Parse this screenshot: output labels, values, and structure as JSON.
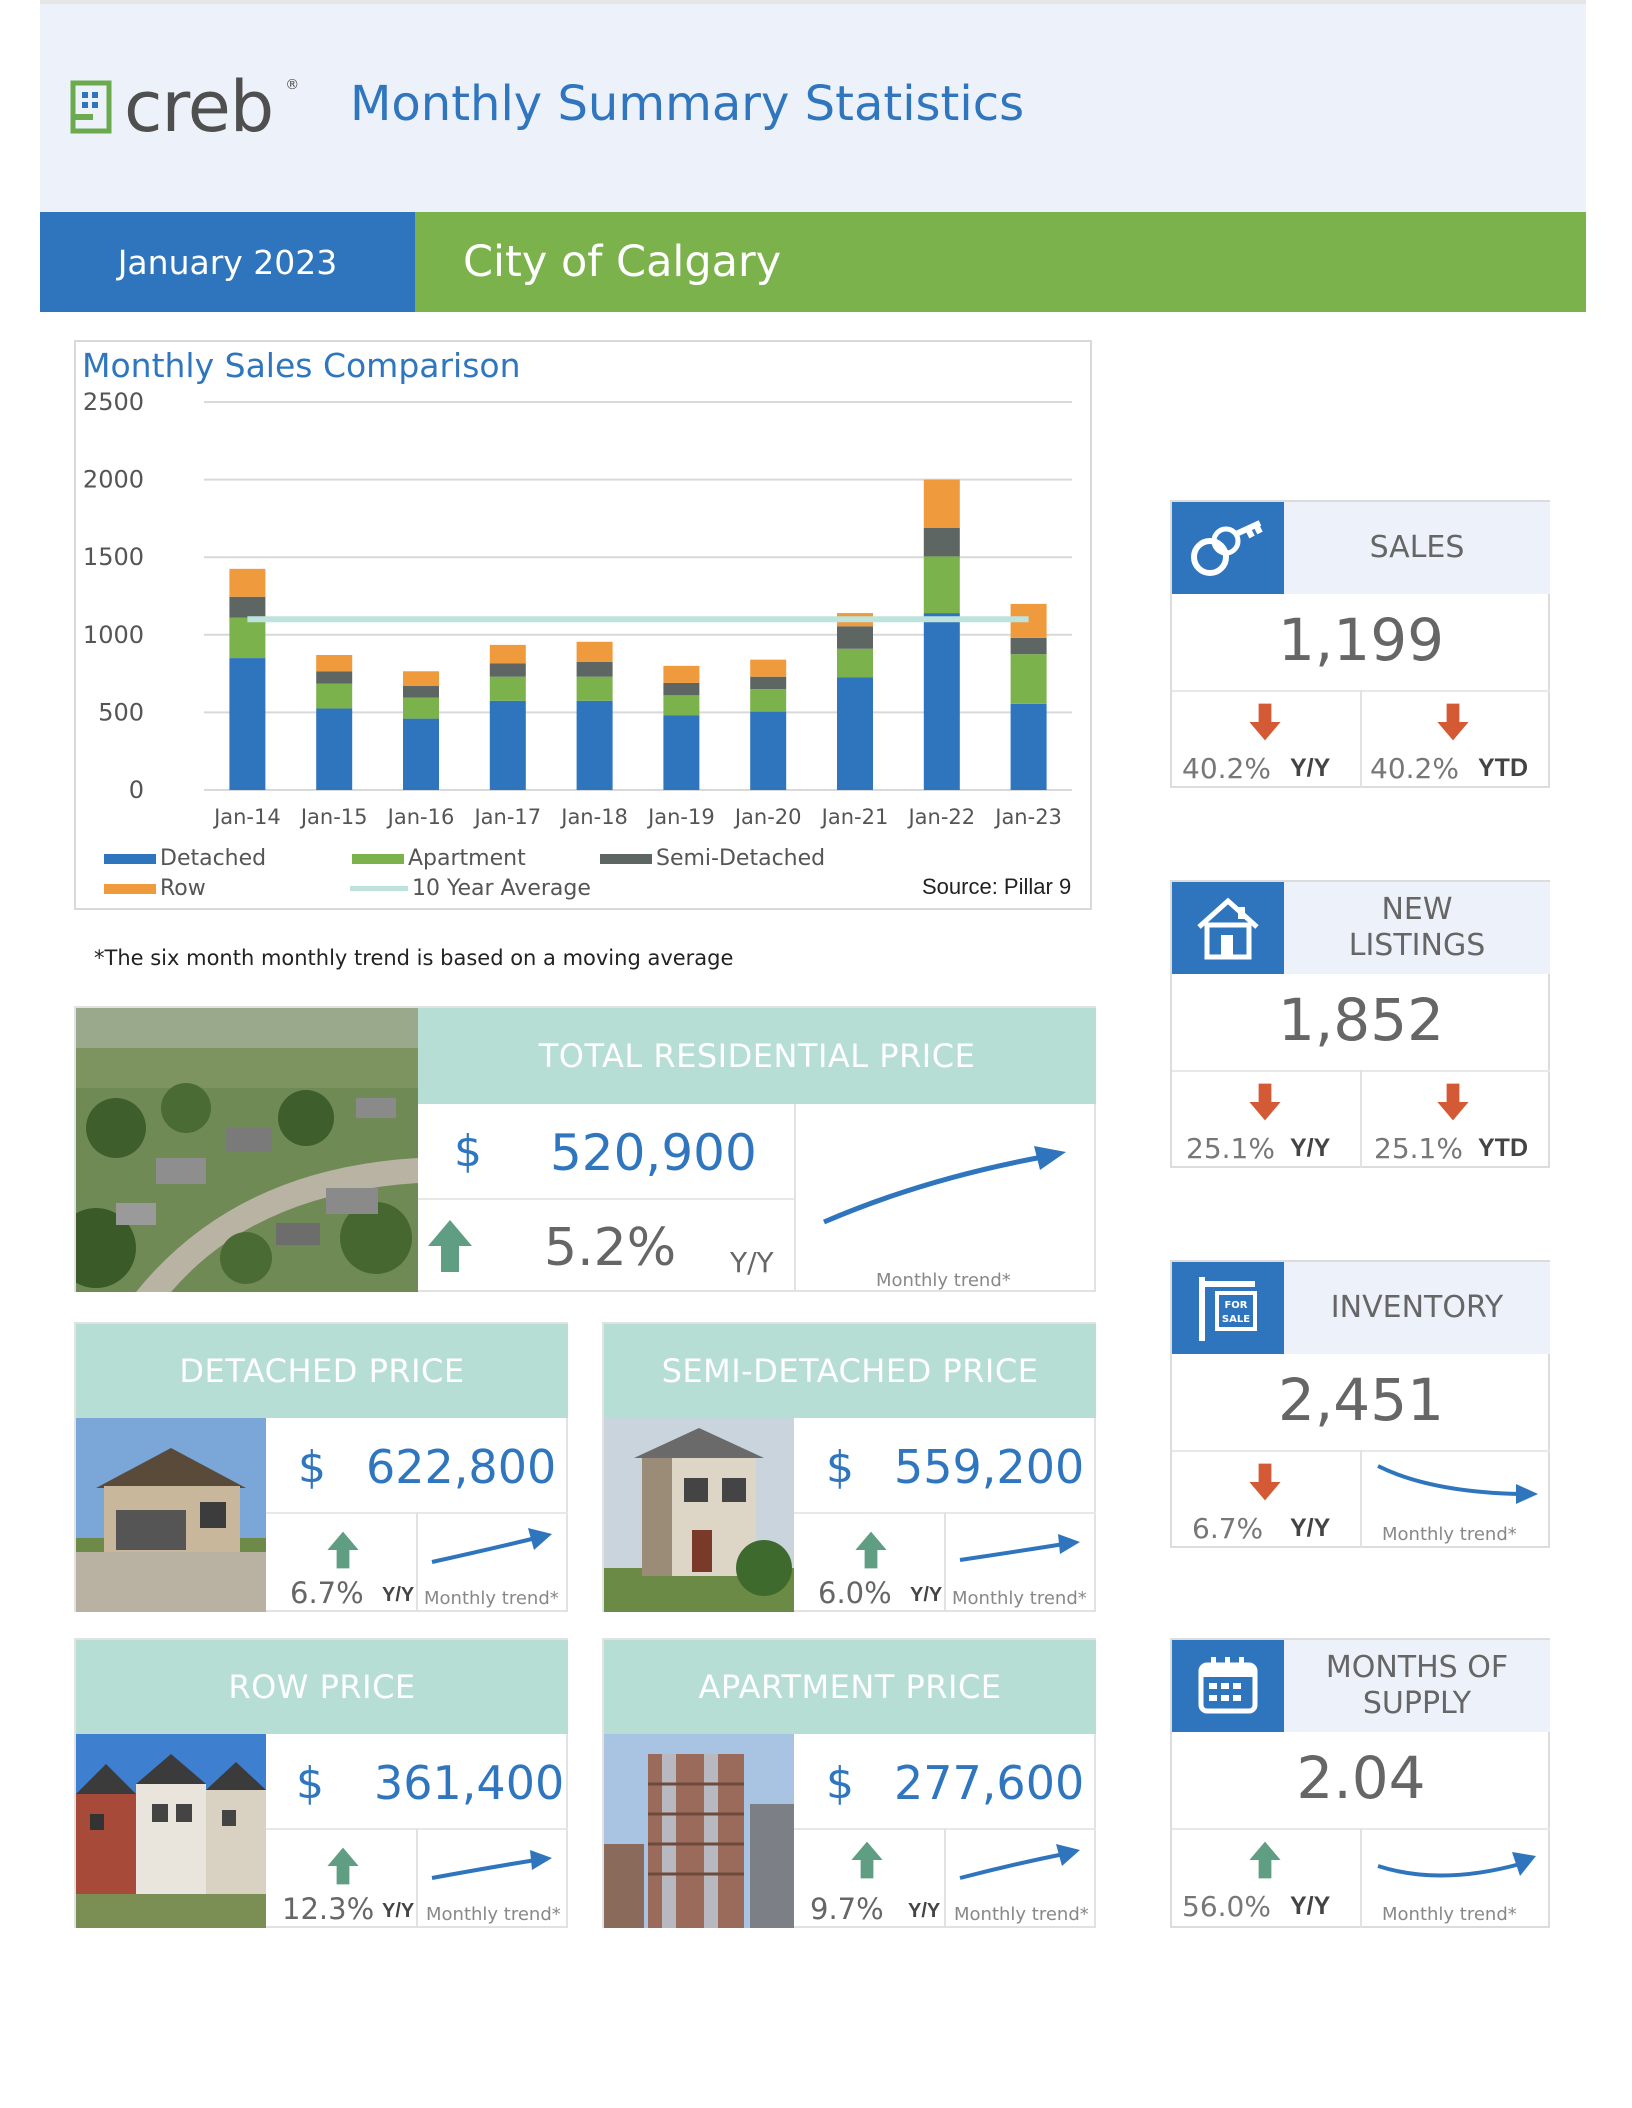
{
  "header": {
    "logo_text": "creb",
    "logo_reg": "®",
    "title": "Monthly Summary Statistics",
    "date": "January 2023",
    "city": "City of Calgary"
  },
  "chart": {
    "source": "Source: Pillar 9",
    "footnote": "*The six month monthly trend is based on a moving average"
  },
  "chart_data": {
    "type": "bar",
    "title": "Monthly Sales Comparison",
    "stacked": true,
    "categories": [
      "Jan-14",
      "Jan-15",
      "Jan-16",
      "Jan-17",
      "Jan-18",
      "Jan-19",
      "Jan-20",
      "Jan-21",
      "Jan-22",
      "Jan-23"
    ],
    "series": [
      {
        "name": "Detached",
        "color": "#2f75bd",
        "values": [
          850,
          525,
          460,
          575,
          575,
          480,
          505,
          725,
          1140,
          555
        ]
      },
      {
        "name": "Apartment",
        "color": "#7bb24b",
        "values": [
          260,
          160,
          135,
          155,
          155,
          130,
          145,
          185,
          365,
          320
        ]
      },
      {
        "name": "Semi-Detached",
        "color": "#5e6663",
        "values": [
          135,
          80,
          75,
          85,
          95,
          80,
          80,
          145,
          185,
          105
        ]
      },
      {
        "name": "Row",
        "color": "#ef9a3d",
        "values": [
          180,
          105,
          95,
          120,
          130,
          110,
          110,
          85,
          310,
          219
        ]
      }
    ],
    "average": {
      "name": "10 Year Average",
      "color": "#bde3dc",
      "value": 1100
    },
    "yticks": [
      "0",
      "500",
      "1000",
      "1500",
      "2000",
      "2500"
    ],
    "ylim": [
      0,
      2500
    ],
    "grid": true,
    "legend_position": "bottom"
  },
  "tiles": {
    "total": {
      "title": "TOTAL RESIDENTIAL PRICE",
      "dollar": "$",
      "price": "520,900",
      "pct": "5.2%",
      "yy": "Y/Y",
      "trend_label": "Monthly trend*"
    },
    "detached": {
      "title": "DETACHED PRICE",
      "dollar": "$",
      "price": "622,800",
      "pct": "6.7%",
      "yy": "Y/Y",
      "trend_label": "Monthly trend*"
    },
    "semi": {
      "title": "SEMI-DETACHED PRICE",
      "dollar": "$",
      "price": "559,200",
      "pct": "6.0%",
      "yy": "Y/Y",
      "trend_label": "Monthly trend*"
    },
    "row": {
      "title": "ROW PRICE",
      "dollar": "$",
      "price": "361,400",
      "pct": "12.3%",
      "yy": "Y/Y",
      "trend_label": "Monthly trend*"
    },
    "apartment": {
      "title": "APARTMENT PRICE",
      "dollar": "$",
      "price": "277,600",
      "pct": "9.7%",
      "yy": "Y/Y",
      "trend_label": "Monthly trend*"
    }
  },
  "cards": {
    "sales": {
      "title": "SALES",
      "value": "1,199",
      "yy_pct": "40.2%",
      "yy_tag": "Y/Y",
      "ytd_pct": "40.2%",
      "ytd_tag": "YTD",
      "icon": "keys-icon"
    },
    "listings": {
      "title_line1": "NEW",
      "title_line2": "LISTINGS",
      "value": "1,852",
      "yy_pct": "25.1%",
      "yy_tag": "Y/Y",
      "ytd_pct": "25.1%",
      "ytd_tag": "YTD",
      "icon": "house-icon"
    },
    "inventory": {
      "title": "INVENTORY",
      "value": "2,451",
      "yy_pct": "6.7%",
      "yy_tag": "Y/Y",
      "trend_label": "Monthly trend*",
      "icon": "for-sale-sign-icon",
      "sign_text": "FOR SALE"
    },
    "supply": {
      "title_line1": "MONTHS OF",
      "title_line2": "SUPPLY",
      "value": "2.04",
      "yy_pct": "56.0%",
      "yy_tag": "Y/Y",
      "trend_label": "Monthly trend*",
      "icon": "calendar-icon"
    }
  },
  "colors": {
    "blue": "#2f75bd",
    "green": "#7bb24b",
    "teal": "#b7ded4",
    "up_arrow": "#5f9e83",
    "down_arrow": "#d35a34"
  }
}
